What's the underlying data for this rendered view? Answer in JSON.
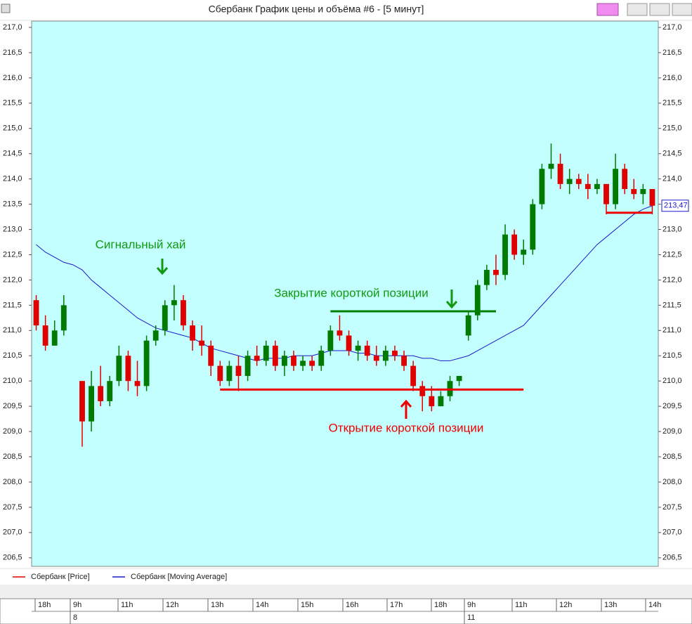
{
  "window_title": "Сбербанк График цены и объёма #6 - [5 минут]",
  "chart_data": {
    "type": "candlestick",
    "background": "#c4ffff",
    "up_color": "#007a00",
    "down_color": "#e00000",
    "series": [
      {
        "name": "Сбербанк [Price]",
        "color": "#e00000",
        "open": [
          211.6,
          211.1,
          210.7,
          211.0,
          null,
          210.0,
          209.2,
          209.9,
          209.6,
          210.0,
          210.5,
          210.0,
          209.9,
          210.8,
          211.0,
          211.5,
          211.6,
          211.1,
          210.8,
          210.7,
          210.3,
          210.0,
          210.3,
          210.1,
          210.5,
          210.4,
          210.7,
          210.3,
          210.5,
          210.3,
          210.4,
          210.3,
          210.6,
          211.0,
          210.9,
          210.6,
          210.7,
          210.5,
          210.4,
          210.6,
          210.5,
          210.3,
          209.9,
          209.7,
          209.5,
          209.7,
          210.0,
          210.9,
          211.3,
          211.9,
          212.2,
          212.1,
          212.9,
          212.5,
          212.6,
          213.5,
          214.2,
          214.3,
          213.9,
          214.0,
          213.9,
          213.8,
          213.9,
          213.5,
          214.2,
          213.8,
          213.7,
          213.8
        ],
        "high": [
          211.7,
          211.3,
          211.2,
          211.7,
          null,
          210.0,
          210.2,
          210.3,
          210.1,
          210.7,
          210.6,
          210.4,
          210.9,
          211.1,
          211.6,
          211.9,
          211.7,
          211.2,
          211.1,
          210.8,
          210.4,
          210.4,
          210.5,
          210.6,
          210.7,
          210.8,
          210.8,
          210.6,
          210.6,
          210.5,
          210.5,
          210.7,
          211.1,
          211.3,
          211.0,
          210.8,
          210.8,
          210.7,
          210.7,
          210.7,
          210.6,
          210.4,
          210.0,
          209.9,
          209.8,
          210.1,
          210.1,
          211.4,
          212.0,
          212.3,
          212.5,
          213.1,
          213.0,
          212.8,
          213.6,
          214.3,
          214.7,
          214.5,
          214.2,
          214.1,
          214.1,
          214.0,
          213.9,
          214.5,
          214.3,
          214.0,
          213.9,
          213.8
        ],
        "low": [
          211.0,
          210.6,
          210.7,
          210.9,
          null,
          208.7,
          209.0,
          209.5,
          209.5,
          209.9,
          209.8,
          209.7,
          209.8,
          210.7,
          210.9,
          211.2,
          211.0,
          210.6,
          210.5,
          210.1,
          209.9,
          209.9,
          209.8,
          210.0,
          210.3,
          210.3,
          210.2,
          210.1,
          210.2,
          210.2,
          210.2,
          210.2,
          210.5,
          210.8,
          210.5,
          210.4,
          210.4,
          210.3,
          210.3,
          210.4,
          210.2,
          209.8,
          209.4,
          209.4,
          209.5,
          209.6,
          209.9,
          210.8,
          211.2,
          211.8,
          211.9,
          212.0,
          212.4,
          212.3,
          212.5,
          213.4,
          214.0,
          213.8,
          213.7,
          213.8,
          213.6,
          213.7,
          213.3,
          213.4,
          213.7,
          213.6,
          213.5,
          213.3
        ],
        "close": [
          211.1,
          210.7,
          211.0,
          211.5,
          null,
          209.2,
          209.9,
          209.6,
          210.0,
          210.5,
          210.0,
          209.9,
          210.8,
          211.0,
          211.5,
          211.6,
          211.1,
          210.8,
          210.7,
          210.3,
          210.0,
          210.3,
          210.1,
          210.5,
          210.4,
          210.7,
          210.3,
          210.5,
          210.3,
          210.4,
          210.3,
          210.6,
          211.0,
          210.9,
          210.6,
          210.7,
          210.5,
          210.4,
          210.6,
          210.5,
          210.3,
          209.9,
          209.7,
          209.5,
          209.7,
          210.0,
          210.1,
          211.3,
          211.9,
          212.2,
          212.1,
          212.9,
          212.5,
          212.6,
          213.5,
          214.2,
          214.3,
          213.9,
          214.0,
          213.9,
          213.8,
          213.9,
          213.5,
          214.2,
          213.8,
          213.7,
          213.8,
          213.47
        ]
      },
      {
        "name": "Сбербанк [Moving Average]",
        "color": "#1a1acc",
        "values": [
          212.7,
          212.55,
          212.45,
          212.35,
          212.3,
          212.2,
          212.0,
          211.85,
          211.7,
          211.55,
          211.4,
          211.25,
          211.15,
          211.05,
          211.0,
          210.95,
          210.9,
          210.85,
          210.75,
          210.65,
          210.6,
          210.55,
          210.5,
          210.45,
          210.4,
          210.45,
          210.45,
          210.45,
          210.5,
          210.5,
          210.5,
          210.55,
          210.6,
          210.6,
          210.6,
          210.55,
          210.55,
          210.5,
          210.5,
          210.5,
          210.5,
          210.5,
          210.45,
          210.45,
          210.4,
          210.4,
          210.45,
          210.5,
          210.6,
          210.7,
          210.8,
          210.9,
          211.0,
          211.1,
          211.3,
          211.5,
          211.7,
          211.9,
          212.1,
          212.3,
          212.5,
          212.7,
          212.85,
          213.0,
          213.15,
          213.3,
          213.4,
          213.47
        ]
      }
    ],
    "last_price": {
      "value": 213.47,
      "label": "213,47"
    },
    "levels": [
      {
        "value": 209.83,
        "color": "#ee0000",
        "start": 20,
        "end": 53
      },
      {
        "value": 211.38,
        "color": "#008000",
        "start": 32,
        "end": 50
      },
      {
        "value": 213.33,
        "color": "#ee0000",
        "start": 62,
        "end": 67
      }
    ],
    "annotations": [
      {
        "text": "Сигнальный хай",
        "color": "#119911"
      },
      {
        "text": "Закрытие короткой позиции",
        "color": "#119911"
      },
      {
        "text": "Открытие короткой позиции",
        "color": "#ee0000"
      }
    ],
    "ylim": [
      206.33,
      217.125
    ],
    "yticks": [
      {
        "value": 206.5,
        "label": "206,5"
      },
      {
        "value": 207,
        "label": "207,0"
      },
      {
        "value": 207.5,
        "label": "207,5"
      },
      {
        "value": 208,
        "label": "208,0"
      },
      {
        "value": 208.5,
        "label": "208,5"
      },
      {
        "value": 209,
        "label": "209,0"
      },
      {
        "value": 209.5,
        "label": "209,5"
      },
      {
        "value": 210,
        "label": "210,0"
      },
      {
        "value": 210.5,
        "label": "210,5"
      },
      {
        "value": 211,
        "label": "211,0"
      },
      {
        "value": 211.5,
        "label": "211,5"
      },
      {
        "value": 212,
        "label": "212,0"
      },
      {
        "value": 212.5,
        "label": "212,5"
      },
      {
        "value": 213,
        "label": "213,0"
      },
      {
        "value": 213.5,
        "label": "213,5"
      },
      {
        "value": 214,
        "label": "214,0"
      },
      {
        "value": 214.5,
        "label": "214,5"
      },
      {
        "value": 215,
        "label": "215,0"
      },
      {
        "value": 215.5,
        "label": "215,5"
      },
      {
        "value": 216,
        "label": "216,0"
      },
      {
        "value": 216.5,
        "label": "216,5"
      },
      {
        "value": 217,
        "label": "217,0"
      }
    ],
    "time_labels": [
      "18h",
      "9h",
      "11h",
      "12h",
      "13h",
      "14h",
      "15h",
      "16h",
      "17h",
      "18h",
      "9h",
      "11h",
      "12h",
      "13h",
      "14h"
    ],
    "date_labels": [
      "8",
      "11"
    ]
  }
}
